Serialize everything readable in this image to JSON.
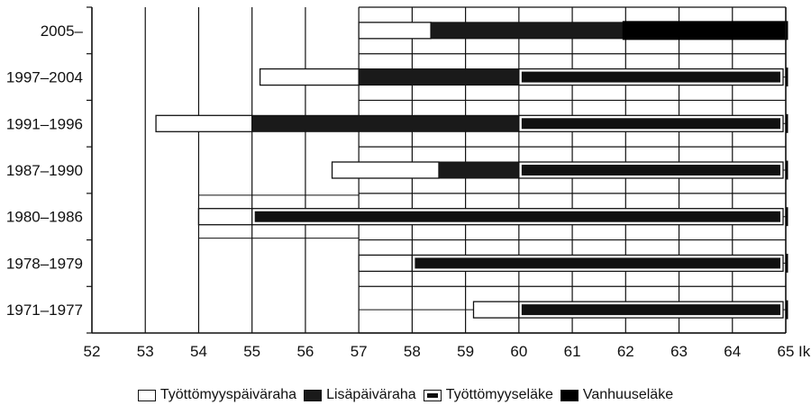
{
  "chart_data": {
    "type": "bar",
    "orientation": "horizontal-range",
    "x_axis": {
      "min": 52,
      "max": 65,
      "ticks": [
        "52",
        "53",
        "54",
        "55",
        "56",
        "57",
        "58",
        "59",
        "60",
        "61",
        "62",
        "63",
        "64",
        "65"
      ],
      "unit_label": "Ikä"
    },
    "categories": [
      "2005–",
      "1997–2004",
      "1991–1996",
      "1987–1990",
      "1980–1986",
      "1978–1979",
      "1971–1977"
    ],
    "series": [
      {
        "name": "Työttömyyspäiväraha",
        "color": "#ffffff",
        "ranges": [
          [
            57.0,
            58.35
          ],
          [
            55.15,
            57.0
          ],
          [
            53.2,
            55.0
          ],
          [
            56.5,
            58.5
          ],
          [
            54.0,
            55.0
          ],
          [
            57.0,
            58.0
          ],
          [
            59.15,
            60.0
          ]
        ]
      },
      {
        "name": "Lisäpäiväraha",
        "color": "#1a1a1a",
        "ranges": [
          [
            58.35,
            61.95
          ],
          [
            57.0,
            60.0
          ],
          [
            55.0,
            60.0
          ],
          [
            58.5,
            60.0
          ],
          null,
          null,
          null
        ]
      },
      {
        "name": "Työttömyyseläke",
        "color": "#111111",
        "ranges": [
          null,
          [
            60.0,
            64.95
          ],
          [
            60.0,
            64.95
          ],
          [
            60.0,
            64.95
          ],
          [
            55.0,
            64.95
          ],
          [
            58.0,
            64.95
          ],
          [
            60.0,
            64.95
          ]
        ]
      },
      {
        "name": "Vanhuuseläke",
        "color": "#000000",
        "ranges": [
          [
            61.95,
            65.3
          ],
          [
            65.0,
            65.3
          ],
          [
            65.0,
            65.3
          ],
          [
            65.0,
            65.3
          ],
          [
            65.0,
            65.3
          ],
          [
            65.0,
            65.3
          ],
          [
            65.0,
            65.3
          ]
        ]
      }
    ],
    "grid": true,
    "legend_position": "bottom"
  }
}
